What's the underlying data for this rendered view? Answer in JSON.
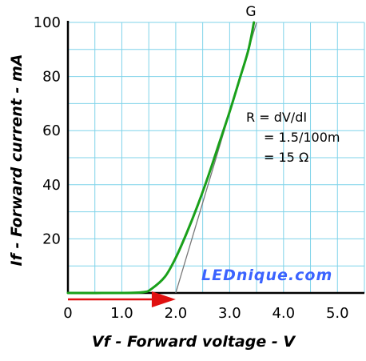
{
  "chart_data": {
    "type": "line",
    "title": "",
    "xlabel": "Vf - Forward voltage - V",
    "ylabel": "If - Forward current - mA",
    "xlim": [
      0,
      5.5
    ],
    "ylim": [
      0,
      100
    ],
    "x_ticks": [
      "0",
      "1.0",
      "2.0",
      "3.0",
      "4.0",
      "5.0"
    ],
    "y_ticks": [
      "20",
      "40",
      "60",
      "80",
      "100"
    ],
    "grid": true,
    "series": [
      {
        "name": "G",
        "color": "#1aa01a",
        "x": [
          0,
          1.0,
          1.4,
          1.55,
          1.8,
          2.0,
          2.2,
          2.4,
          2.6,
          2.8,
          3.0,
          3.2,
          3.35,
          3.45
        ],
        "y": [
          0,
          0,
          0.3,
          1.5,
          6,
          13,
          22,
          32,
          43,
          55,
          67,
          80,
          90,
          100
        ]
      }
    ],
    "tangent_line": {
      "color": "#777777",
      "x": [
        2.0,
        3.5
      ],
      "y": [
        0,
        100
      ]
    },
    "arrow": {
      "color": "#e01010",
      "from_x": 0,
      "to_x": 2.0
    },
    "annotation": [
      "R = dV/dI",
      "= 1.5/100m",
      "= 15 Ω"
    ],
    "watermark": "LEDnique.com"
  }
}
